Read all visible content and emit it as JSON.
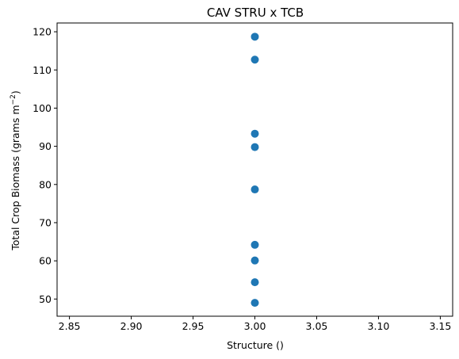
{
  "chart_data": {
    "type": "scatter",
    "title": "CAV STRU x TCB",
    "xlabel": "Structure ()",
    "ylabel_main": "Total Crop Biomass (grams m",
    "ylabel_sup": "−2",
    "ylabel_tail": ")",
    "xlim": [
      2.84,
      3.16
    ],
    "ylim": [
      45.5,
      122.3
    ],
    "x_ticks": [
      2.85,
      2.9,
      2.95,
      3.0,
      3.05,
      3.1,
      3.15
    ],
    "x_tick_labels": [
      "2.85",
      "2.90",
      "2.95",
      "3.00",
      "3.05",
      "3.10",
      "3.15"
    ],
    "y_ticks": [
      50,
      60,
      70,
      80,
      90,
      100,
      110,
      120
    ],
    "y_tick_labels": [
      "50",
      "60",
      "70",
      "80",
      "90",
      "100",
      "110",
      "120"
    ],
    "grid": false,
    "marker_color": "#1f77b4",
    "points": [
      {
        "x": 3.0,
        "y": 118.7
      },
      {
        "x": 3.0,
        "y": 112.7
      },
      {
        "x": 3.0,
        "y": 93.3
      },
      {
        "x": 3.0,
        "y": 89.8
      },
      {
        "x": 3.0,
        "y": 78.7
      },
      {
        "x": 3.0,
        "y": 64.2
      },
      {
        "x": 3.0,
        "y": 60.1
      },
      {
        "x": 3.0,
        "y": 54.4
      },
      {
        "x": 3.0,
        "y": 49.0
      }
    ]
  }
}
